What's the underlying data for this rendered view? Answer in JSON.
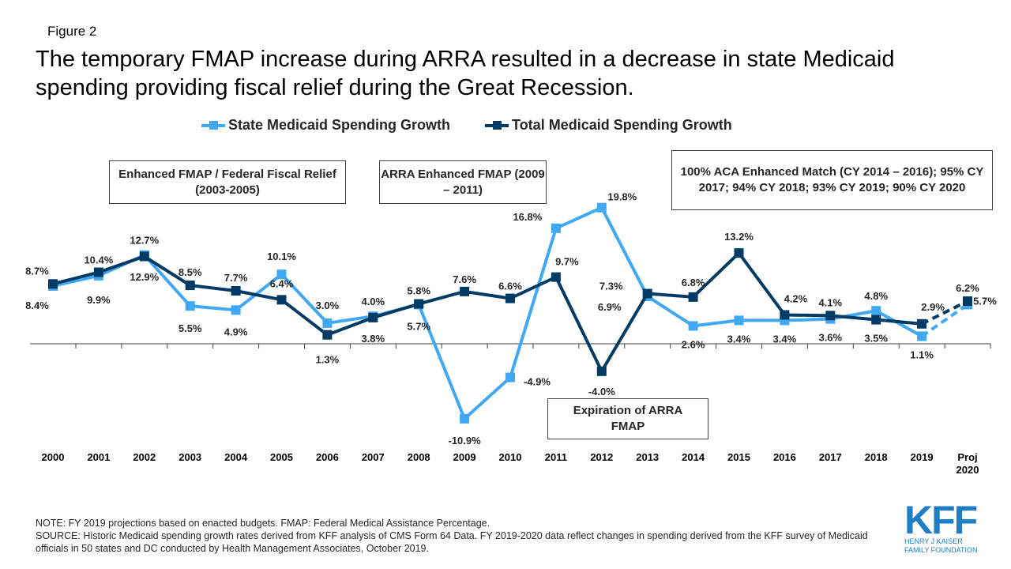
{
  "figure_label": "Figure 2",
  "title": "The temporary FMAP increase during ARRA resulted in a decrease in state Medicaid spending providing fiscal relief during the Great Recession.",
  "annotations": {
    "box1": "Enhanced  FMAP / Federal Fiscal  Relief  (2003-2005)",
    "box2": "ARRA Enhanced  FMAP (2009 – 2011)",
    "box3": "100% ACA Enhanced Match (CY 2014 – 2016); 95% CY 2017;  94% CY 2018;  93% CY 2019; 90% CY 2020",
    "box4": "Expiration of ARRA FMAP"
  },
  "note": "NOTE: FY 2019 projections based on enacted budgets. FMAP:  Federal Medical Assistance Percentage.",
  "source": "SOURCE: Historic Medicaid spending growth rates derived from KFF analysis of CMS Form 64 Data. FY 2019-2020 data reflect changes in spending derived from the KFF survey of Medicaid officials in 50 states and DC conducted by Health Management Associates, October 2019.",
  "logo": {
    "mark": "KFF",
    "line1": "HENRY J KAISER",
    "line2": "FAMILY FOUNDATION"
  },
  "chart_data": {
    "type": "line",
    "categories": [
      "2000",
      "2001",
      "2002",
      "2003",
      "2004",
      "2005",
      "2006",
      "2007",
      "2008",
      "2009",
      "2010",
      "2011",
      "2012",
      "2013",
      "2014",
      "2015",
      "2016",
      "2017",
      "2018",
      "2019",
      "Proj 2020"
    ],
    "legend_position": "top",
    "grid": false,
    "ylim": [
      -12,
      22
    ],
    "projected_segment": "2019 to Proj 2020 dashed",
    "series": [
      {
        "name": "State Medicaid Spending Growth",
        "color": "#41a8f4",
        "values": [
          8.4,
          9.9,
          12.9,
          5.5,
          4.9,
          10.1,
          3.0,
          4.0,
          5.7,
          -10.9,
          -4.9,
          16.8,
          19.8,
          6.9,
          2.6,
          3.4,
          3.4,
          3.6,
          4.8,
          1.1,
          5.7
        ]
      },
      {
        "name": "Total Medicaid Spending Growth",
        "color": "#003b66",
        "values": [
          8.7,
          10.4,
          12.7,
          8.5,
          7.7,
          6.4,
          1.3,
          3.8,
          5.8,
          7.6,
          6.6,
          9.7,
          -4.0,
          7.3,
          6.8,
          13.2,
          4.2,
          4.1,
          3.5,
          2.9,
          6.2
        ]
      }
    ]
  }
}
